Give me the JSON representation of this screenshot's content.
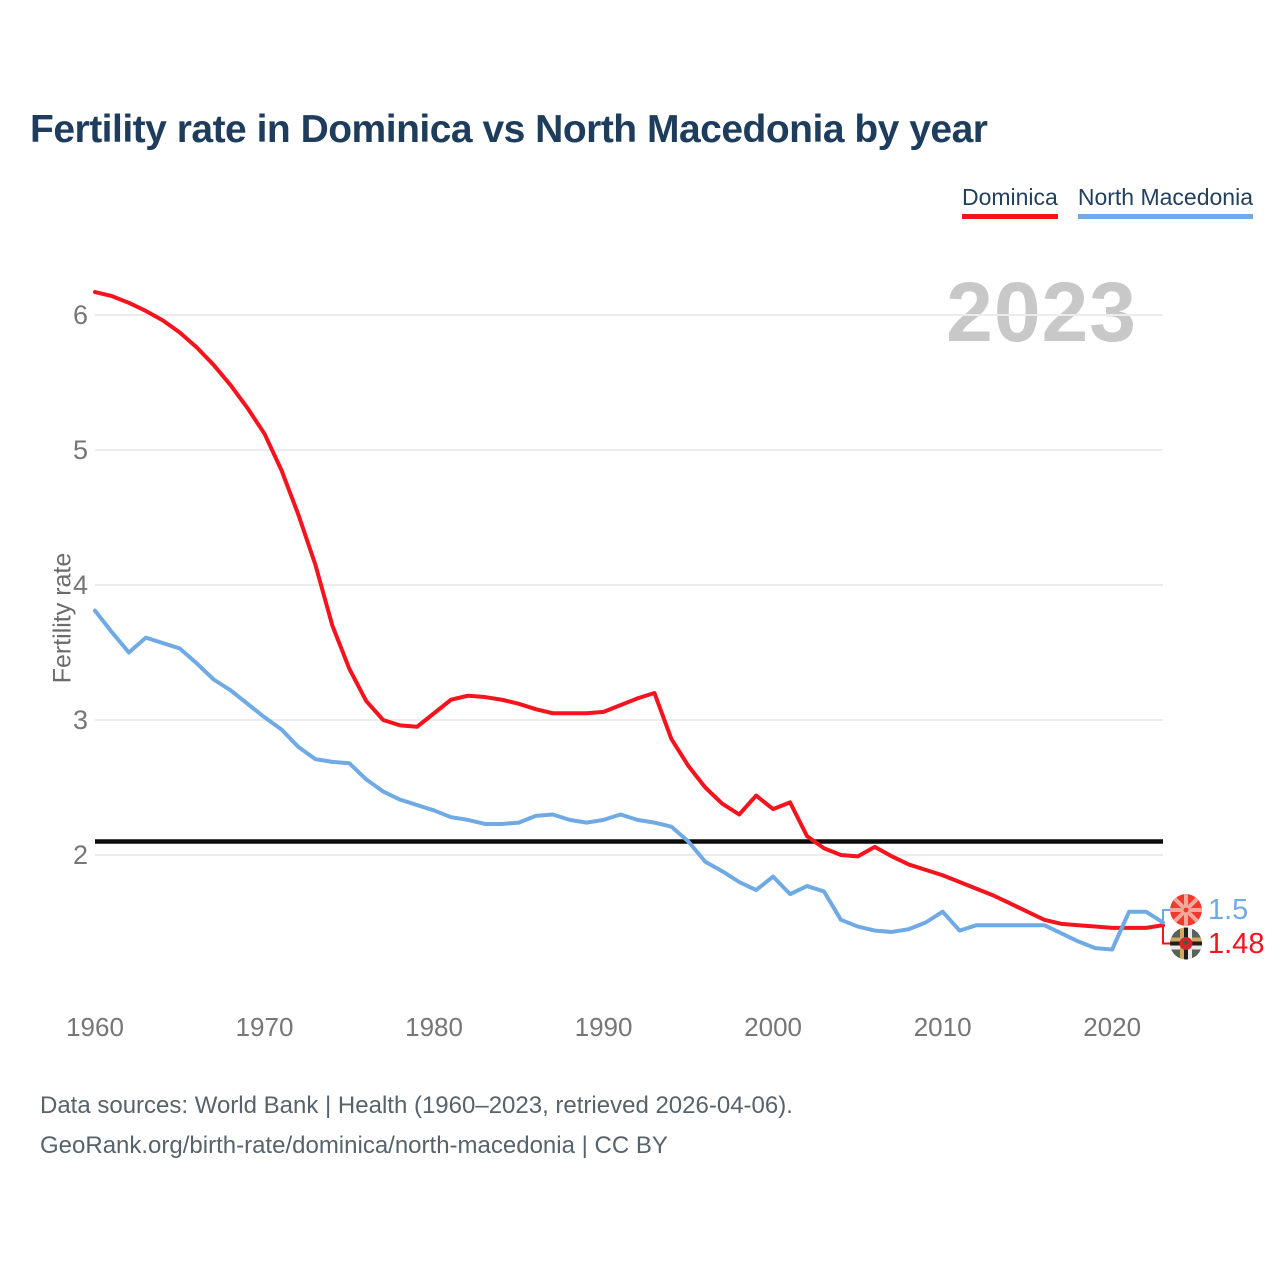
{
  "title": "Fertility rate in Dominica vs North Macedonia by year",
  "watermark": "2023",
  "footer": {
    "line1": "Data sources: World Bank | Health (1960–2023, retrieved 2026-04-06).",
    "line2": "GeoRank.org/birth-rate/dominica/north-macedonia | CC BY"
  },
  "chart_data": {
    "type": "line",
    "title": "Fertility rate in Dominica vs North Macedonia by year",
    "xlabel": "",
    "ylabel": "Fertility rate",
    "grid": true,
    "legend_position": "top-right",
    "xlim": [
      1960,
      2023
    ],
    "ylim": [
      1.2,
      6.3
    ],
    "yticks": [
      2,
      3,
      4,
      5,
      6
    ],
    "xticks": [
      1960,
      1970,
      1980,
      1990,
      2000,
      2010,
      2020
    ],
    "reference_line": {
      "value": 2.1,
      "color": "#0b0b0b"
    },
    "x": [
      1960,
      1961,
      1962,
      1963,
      1964,
      1965,
      1966,
      1967,
      1968,
      1969,
      1970,
      1971,
      1972,
      1973,
      1974,
      1975,
      1976,
      1977,
      1978,
      1979,
      1980,
      1981,
      1982,
      1983,
      1984,
      1985,
      1986,
      1987,
      1988,
      1989,
      1990,
      1991,
      1992,
      1993,
      1994,
      1995,
      1996,
      1997,
      1998,
      1999,
      2000,
      2001,
      2002,
      2003,
      2004,
      2005,
      2006,
      2007,
      2008,
      2009,
      2010,
      2011,
      2012,
      2013,
      2014,
      2015,
      2016,
      2017,
      2018,
      2019,
      2020,
      2021,
      2022,
      2023
    ],
    "series": [
      {
        "name": "Dominica",
        "color": "#f5131d",
        "flag": "dominica-flag",
        "end_label": "1.48",
        "values": [
          6.17,
          6.14,
          6.09,
          6.03,
          5.96,
          5.87,
          5.76,
          5.63,
          5.48,
          5.31,
          5.12,
          4.85,
          4.52,
          4.15,
          3.7,
          3.38,
          3.14,
          3.0,
          2.96,
          2.95,
          3.05,
          3.15,
          3.18,
          3.17,
          3.15,
          3.12,
          3.08,
          3.05,
          3.05,
          3.05,
          3.06,
          3.11,
          3.16,
          3.2,
          2.86,
          2.66,
          2.5,
          2.38,
          2.3,
          2.44,
          2.34,
          2.39,
          2.14,
          2.05,
          2.0,
          1.99,
          2.06,
          1.99,
          1.93,
          1.89,
          1.85,
          1.8,
          1.75,
          1.7,
          1.64,
          1.58,
          1.52,
          1.49,
          1.48,
          1.47,
          1.46,
          1.46,
          1.46,
          1.48
        ]
      },
      {
        "name": "North Macedonia",
        "color": "#6faae4",
        "flag": "north-macedonia-flag",
        "end_label": "1.5",
        "values": [
          3.81,
          3.65,
          3.5,
          3.61,
          3.57,
          3.53,
          3.42,
          3.3,
          3.22,
          3.12,
          3.02,
          2.93,
          2.8,
          2.71,
          2.69,
          2.68,
          2.56,
          2.47,
          2.41,
          2.37,
          2.33,
          2.28,
          2.26,
          2.23,
          2.23,
          2.24,
          2.29,
          2.3,
          2.26,
          2.24,
          2.26,
          2.3,
          2.26,
          2.24,
          2.21,
          2.1,
          1.95,
          1.88,
          1.8,
          1.74,
          1.84,
          1.71,
          1.77,
          1.73,
          1.52,
          1.47,
          1.44,
          1.43,
          1.45,
          1.5,
          1.58,
          1.44,
          1.48,
          1.48,
          1.48,
          1.48,
          1.48,
          1.42,
          1.36,
          1.31,
          1.3,
          1.58,
          1.58,
          1.5
        ]
      }
    ]
  }
}
